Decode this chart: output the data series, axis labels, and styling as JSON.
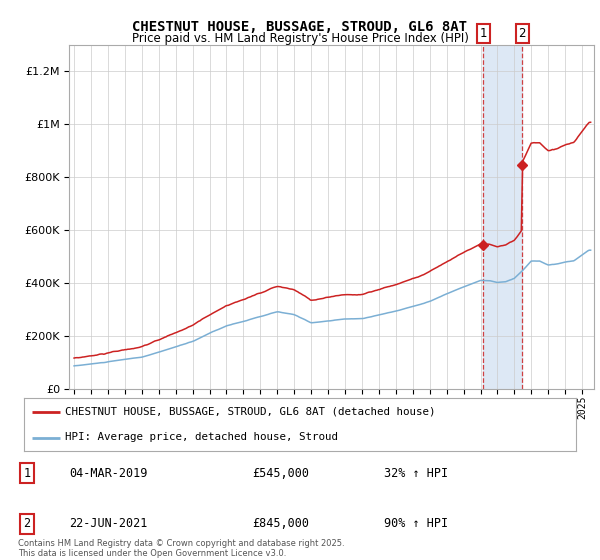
{
  "title": "CHESTNUT HOUSE, BUSSAGE, STROUD, GL6 8AT",
  "subtitle": "Price paid vs. HM Land Registry's House Price Index (HPI)",
  "red_label": "CHESTNUT HOUSE, BUSSAGE, STROUD, GL6 8AT (detached house)",
  "blue_label": "HPI: Average price, detached house, Stroud",
  "annotation1_date": "04-MAR-2019",
  "annotation1_price": 545000,
  "annotation1_text": "32% ↑ HPI",
  "annotation2_date": "22-JUN-2021",
  "annotation2_price": 845000,
  "annotation2_text": "90% ↑ HPI",
  "footer": "Contains HM Land Registry data © Crown copyright and database right 2025.\nThis data is licensed under the Open Government Licence v3.0.",
  "sale1_year": 2019.17,
  "sale2_year": 2021.47,
  "hpi_anchors_t": [
    1995,
    1996,
    1997,
    1998,
    1999,
    2000,
    2001,
    2002,
    2003,
    2004,
    2005,
    2006,
    2007,
    2008,
    2009,
    2010,
    2011,
    2012,
    2013,
    2014,
    2015,
    2016,
    2017,
    2018,
    2019,
    2019.5,
    2020,
    2020.5,
    2021,
    2021.5,
    2022,
    2022.5,
    2023,
    2023.5,
    2024,
    2024.5,
    2025.4
  ],
  "hpi_anchors_v": [
    88000,
    95000,
    103000,
    112000,
    120000,
    138000,
    158000,
    178000,
    210000,
    238000,
    255000,
    272000,
    290000,
    278000,
    248000,
    255000,
    262000,
    263000,
    278000,
    292000,
    310000,
    330000,
    358000,
    385000,
    408000,
    408000,
    400000,
    403000,
    415000,
    445000,
    480000,
    480000,
    465000,
    468000,
    475000,
    480000,
    520000
  ],
  "red_noise_seed": 20,
  "blue_noise_seed": 10,
  "ylim_max": 1300000,
  "bg_color": "#ffffff",
  "grid_color": "#cccccc",
  "red_color": "#cc2222",
  "blue_color": "#7bafd4",
  "span_color": "#dde8f5",
  "title_fontsize": 10,
  "subtitle_fontsize": 8.5
}
